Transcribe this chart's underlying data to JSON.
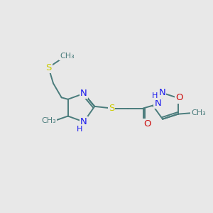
{
  "bg_color": "#e8e8e8",
  "bond_color": "#4a7c7c",
  "N_color": "#1a1aee",
  "O_color": "#cc1111",
  "S_color": "#cccc00",
  "font_size": 9.5,
  "figsize": [
    3.0,
    3.0
  ],
  "dpi": 100,
  "xlim": [
    0,
    9
  ],
  "ylim": [
    0,
    9
  ]
}
